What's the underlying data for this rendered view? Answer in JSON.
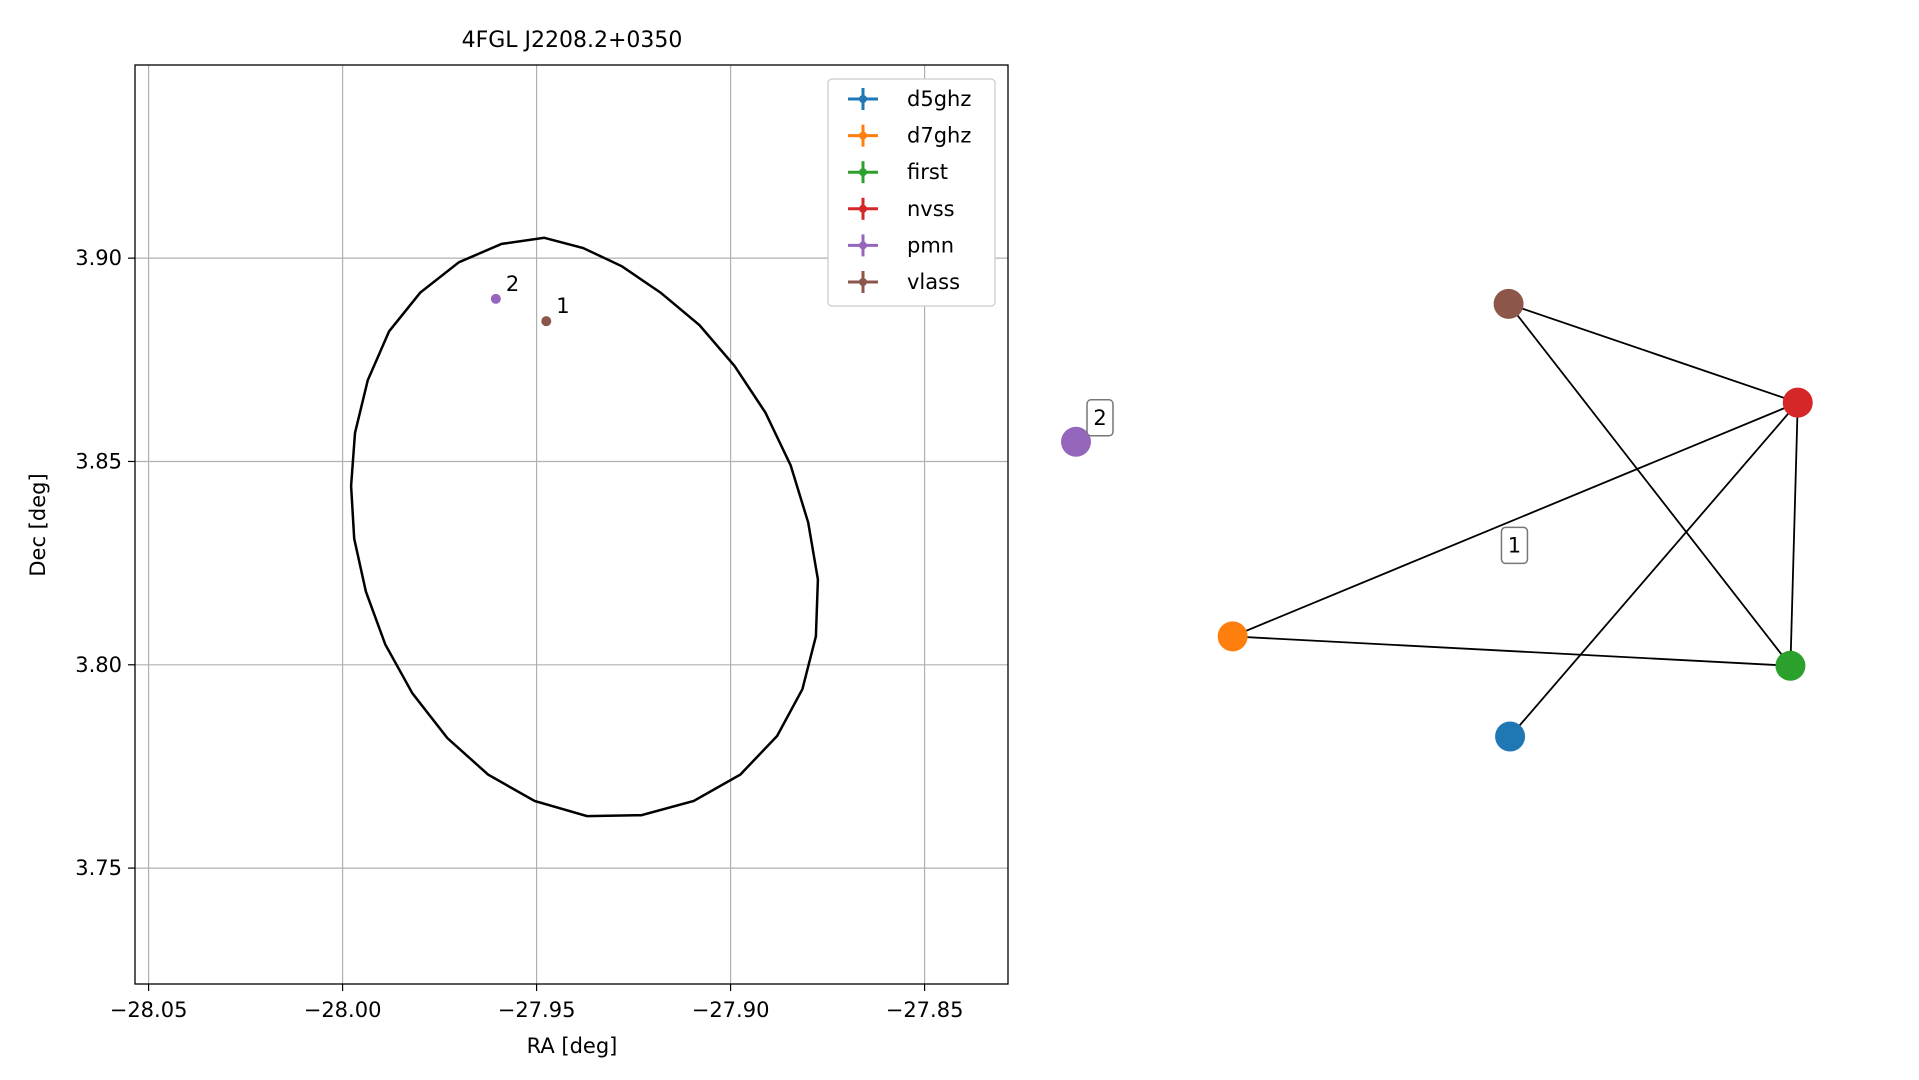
{
  "chart_data": [
    {
      "type": "scatter",
      "title": "4FGL J2208.2+0350",
      "xlabel": "RA [deg]",
      "ylabel": "Dec [deg]",
      "xlim": [
        -28.0535,
        -27.8285
      ],
      "ylim": [
        3.7215,
        3.9475
      ],
      "xticks": [
        -28.05,
        -28.0,
        -27.95,
        -27.9,
        -27.85
      ],
      "xtick_labels": [
        "−28.05",
        "−28.00",
        "−27.95",
        "−27.90",
        "−27.85"
      ],
      "yticks": [
        3.75,
        3.8,
        3.85,
        3.9
      ],
      "ytick_labels": [
        "3.75",
        "3.80",
        "3.85",
        "3.90"
      ],
      "grid": true,
      "legend_position": "top-right",
      "legend": [
        "d5ghz",
        "d7ghz",
        "first",
        "nvss",
        "pmn",
        "vlass"
      ],
      "legend_colors": [
        "#1f77b4",
        "#ff7f0e",
        "#2ca02c",
        "#d62728",
        "#9467bd",
        "#8c564b"
      ],
      "ellipse": {
        "center": [
          -27.9405,
          3.8305
        ],
        "points": [
          [
            -27.948,
            3.905
          ],
          [
            -27.938,
            3.9025
          ],
          [
            -27.928,
            3.898
          ],
          [
            -27.918,
            3.8915
          ],
          [
            -27.908,
            3.8835
          ],
          [
            -27.899,
            3.8735
          ],
          [
            -27.891,
            3.862
          ],
          [
            -27.8845,
            3.849
          ],
          [
            -27.88,
            3.835
          ],
          [
            -27.8775,
            3.821
          ],
          [
            -27.878,
            3.807
          ],
          [
            -27.8815,
            3.794
          ],
          [
            -27.888,
            3.7825
          ],
          [
            -27.8975,
            3.773
          ],
          [
            -27.9095,
            3.7665
          ],
          [
            -27.923,
            3.763
          ],
          [
            -27.937,
            3.7628
          ],
          [
            -27.9505,
            3.7665
          ],
          [
            -27.9625,
            3.773
          ],
          [
            -27.973,
            3.782
          ],
          [
            -27.982,
            3.793
          ],
          [
            -27.989,
            3.805
          ],
          [
            -27.994,
            3.818
          ],
          [
            -27.997,
            3.831
          ],
          [
            -27.9978,
            3.844
          ],
          [
            -27.9968,
            3.857
          ],
          [
            -27.9935,
            3.87
          ],
          [
            -27.988,
            3.882
          ],
          [
            -27.98,
            3.8915
          ],
          [
            -27.97,
            3.899
          ],
          [
            -27.959,
            3.9035
          ]
        ]
      },
      "points": [
        {
          "label": "2",
          "x": -27.9605,
          "y": 3.89,
          "color": "#9467bd"
        },
        {
          "label": "1",
          "x": -27.9475,
          "y": 3.8845,
          "color": "#8c564b"
        }
      ]
    },
    {
      "type": "network",
      "nodes": [
        {
          "id": "d5ghz",
          "x": 0.593,
          "y": 0.215,
          "color": "#1f77b4"
        },
        {
          "id": "d7ghz",
          "x": 0.214,
          "y": 0.358,
          "color": "#ff7f0e"
        },
        {
          "id": "first",
          "x": 0.976,
          "y": 0.316,
          "color": "#2ca02c"
        },
        {
          "id": "nvss",
          "x": 0.986,
          "y": 0.692,
          "color": "#d62728"
        },
        {
          "id": "pmn",
          "x": 0.0,
          "y": 0.636,
          "color": "#9467bd"
        },
        {
          "id": "vlass",
          "x": 0.591,
          "y": 0.833,
          "color": "#8c564b"
        }
      ],
      "edges": [
        [
          "vlass",
          "nvss"
        ],
        [
          "vlass",
          "first"
        ],
        [
          "nvss",
          "d7ghz"
        ],
        [
          "nvss",
          "first"
        ],
        [
          "nvss",
          "d5ghz"
        ],
        [
          "d7ghz",
          "first"
        ]
      ],
      "group_labels": [
        {
          "text": "1",
          "x": 0.599,
          "y": 0.488
        },
        {
          "text": "2",
          "x": 0.0,
          "y": 0.636
        }
      ]
    }
  ]
}
